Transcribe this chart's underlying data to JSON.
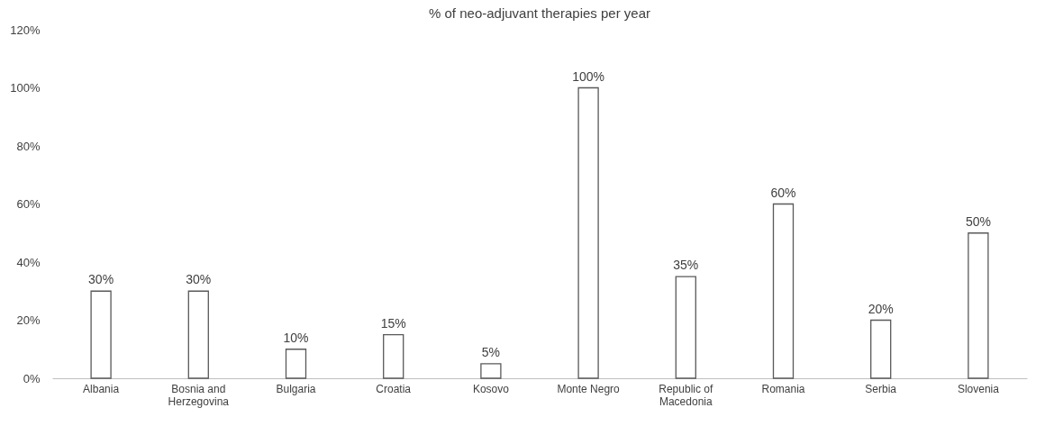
{
  "chart_data": {
    "type": "bar",
    "title": "% of neo-adjuvant therapies per year",
    "categories": [
      "Albania",
      "Bosnia and Herzegovina",
      "Bulgaria",
      "Croatia",
      "Kosovo",
      "Monte Negro",
      "Republic of Macedonia",
      "Romania",
      "Serbia",
      "Slovenia"
    ],
    "values": [
      30,
      30,
      10,
      15,
      5,
      100,
      35,
      60,
      20,
      50
    ],
    "value_labels": [
      "30%",
      "30%",
      "10%",
      "15%",
      "5%",
      "100%",
      "35%",
      "60%",
      "20%",
      "50%"
    ],
    "color": "#ffffff",
    "ylim": [
      0,
      120
    ],
    "yticks": [
      {
        "value": 0,
        "label": "0%"
      },
      {
        "value": 20,
        "label": "20%"
      },
      {
        "value": 40,
        "label": "40%"
      },
      {
        "value": 60,
        "label": "60%"
      },
      {
        "value": 80,
        "label": "80%"
      },
      {
        "value": 100,
        "label": "100%"
      },
      {
        "value": 120,
        "label": "120%"
      }
    ],
    "grid": false
  }
}
